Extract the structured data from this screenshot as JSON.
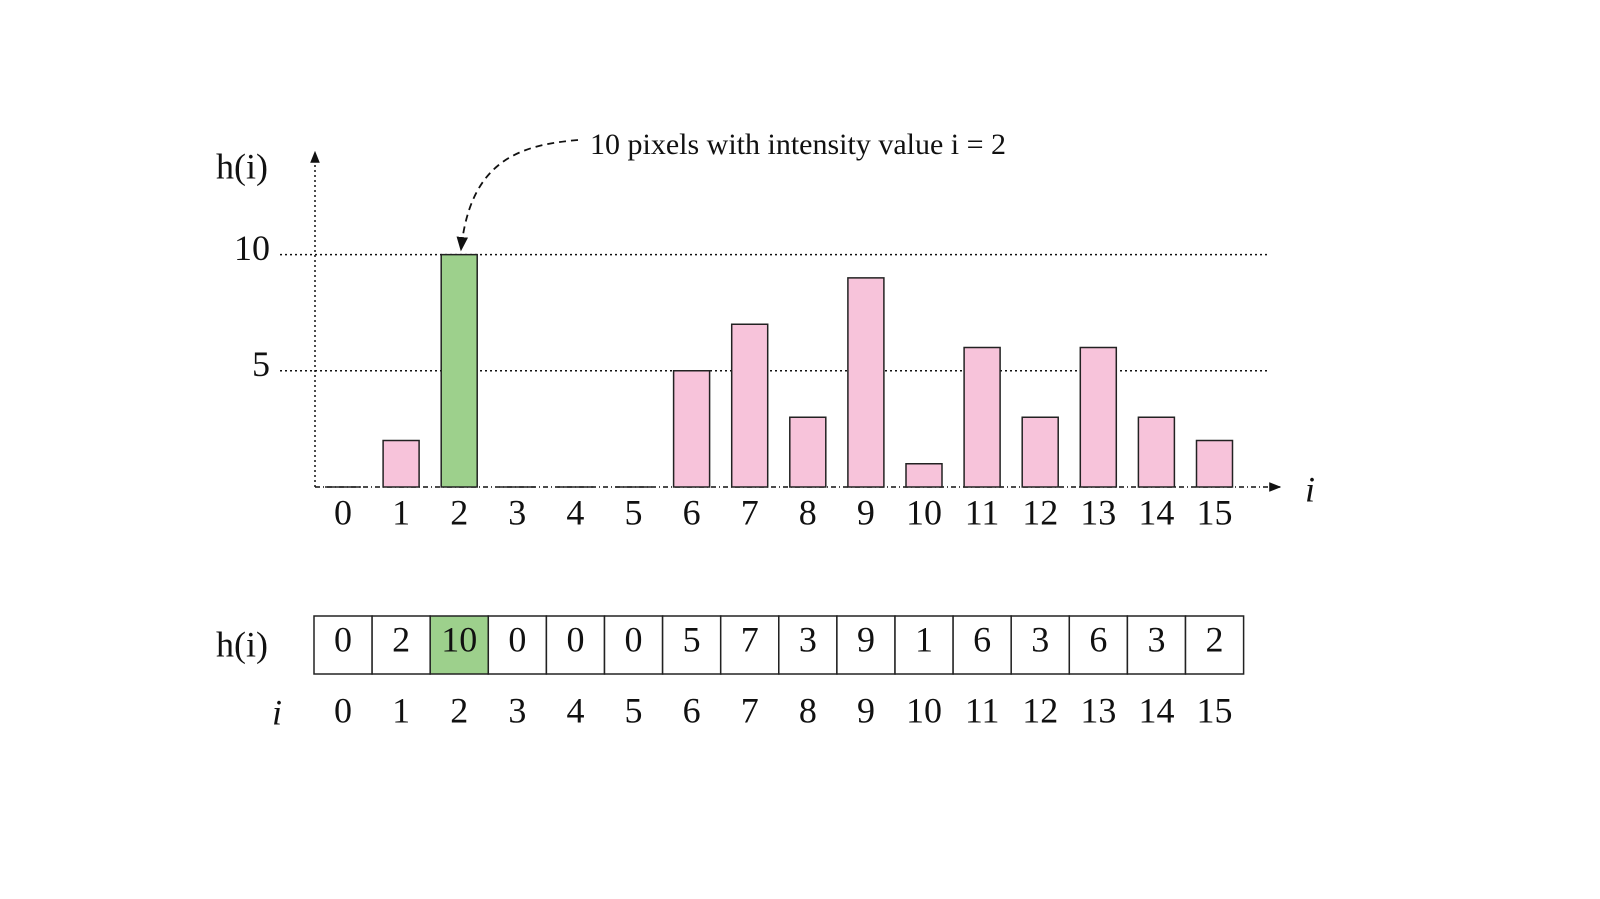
{
  "chart_data": {
    "type": "bar",
    "annotation": "10 pixels with intensity value i = 2",
    "y_label": "h(i)",
    "x_label": "i",
    "categories": [
      "0",
      "1",
      "2",
      "3",
      "4",
      "5",
      "6",
      "7",
      "8",
      "9",
      "10",
      "11",
      "12",
      "13",
      "14",
      "15"
    ],
    "values": [
      0,
      2,
      10,
      0,
      0,
      0,
      5,
      7,
      3,
      9,
      1,
      6,
      3,
      6,
      3,
      2
    ],
    "colors": [
      "#f7c3da",
      "#f7c3da",
      "#9dd08c",
      "#f7c3da",
      "#f7c3da",
      "#f7c3da",
      "#f7c3da",
      "#f7c3da",
      "#f7c3da",
      "#f7c3da",
      "#f7c3da",
      "#f7c3da",
      "#f7c3da",
      "#f7c3da",
      "#f7c3da",
      "#f7c3da"
    ],
    "ylim": [
      0,
      14.5
    ],
    "yticks": [
      5,
      10
    ],
    "grid": true
  },
  "table": {
    "row_labels": [
      "h(i)",
      "i"
    ],
    "rows": [
      [
        0,
        2,
        10,
        0,
        0,
        0,
        5,
        7,
        3,
        9,
        1,
        6,
        3,
        6,
        3,
        2
      ],
      [
        0,
        1,
        2,
        3,
        4,
        5,
        6,
        7,
        8,
        9,
        10,
        11,
        12,
        13,
        14,
        15
      ]
    ],
    "highlight_column": 2,
    "highlight_color": "#9dd08c"
  }
}
